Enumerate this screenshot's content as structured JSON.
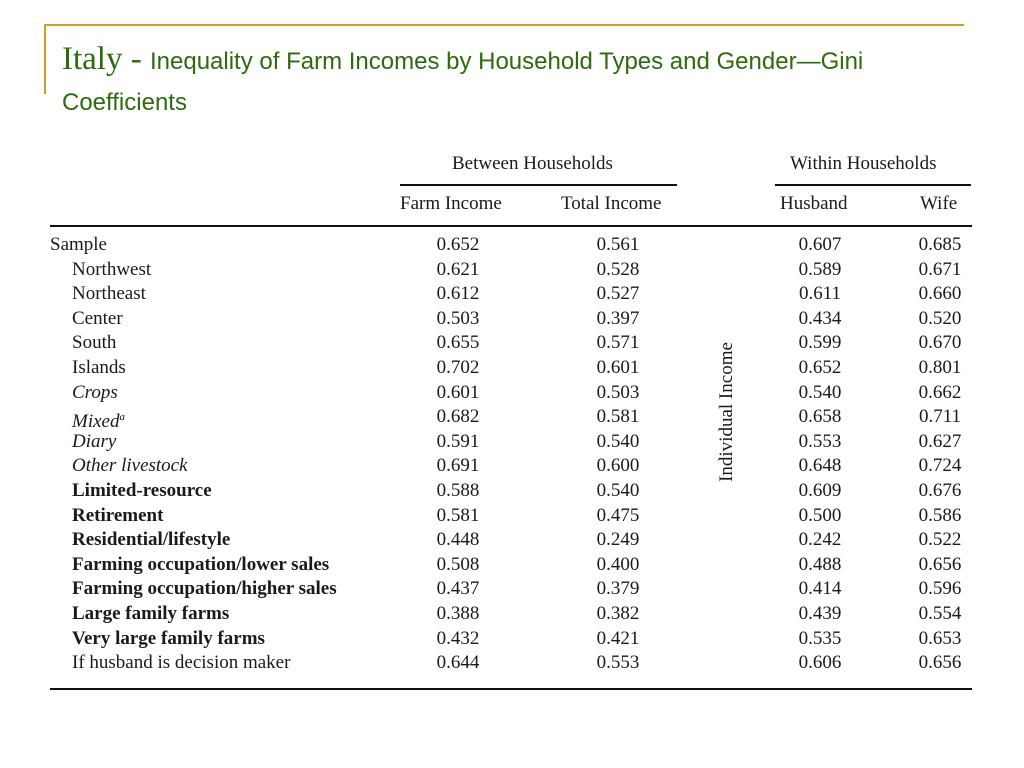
{
  "title": {
    "country": "Italy",
    "separator": " - ",
    "text": "Inequality of Farm Incomes by Household Types and Gender—Gini Coefficients"
  },
  "table": {
    "group_headers": {
      "between": "Between Households",
      "within": "Within Households"
    },
    "column_headers": [
      "Farm Income",
      "Total Income",
      "Husband",
      "Wife"
    ],
    "side_label": "Individual Income",
    "rows": [
      {
        "label": "Sample",
        "style": "normal",
        "indent": false,
        "values": [
          "0.652",
          "0.561",
          "0.607",
          "0.685"
        ]
      },
      {
        "label": "Northwest",
        "style": "normal",
        "indent": true,
        "values": [
          "0.621",
          "0.528",
          "0.589",
          "0.671"
        ]
      },
      {
        "label": "Northeast",
        "style": "normal",
        "indent": true,
        "values": [
          "0.612",
          "0.527",
          "0.611",
          "0.660"
        ]
      },
      {
        "label": "Center",
        "style": "normal",
        "indent": true,
        "values": [
          "0.503",
          "0.397",
          "0.434",
          "0.520"
        ]
      },
      {
        "label": "South",
        "style": "normal",
        "indent": true,
        "values": [
          "0.655",
          "0.571",
          "0.599",
          "0.670"
        ]
      },
      {
        "label": "Islands",
        "style": "normal",
        "indent": true,
        "values": [
          "0.702",
          "0.601",
          "0.652",
          "0.801"
        ]
      },
      {
        "label": "Crops",
        "style": "italic",
        "indent": true,
        "values": [
          "0.601",
          "0.503",
          "0.540",
          "0.662"
        ]
      },
      {
        "label": "Mixed",
        "sup": "a",
        "style": "italic",
        "indent": true,
        "values": [
          "0.682",
          "0.581",
          "0.658",
          "0.711"
        ]
      },
      {
        "label": "Diary",
        "style": "italic",
        "indent": true,
        "values": [
          "0.591",
          "0.540",
          "0.553",
          "0.627"
        ]
      },
      {
        "label": "Other livestock",
        "style": "italic",
        "indent": true,
        "values": [
          "0.691",
          "0.600",
          "0.648",
          "0.724"
        ]
      },
      {
        "label": "Limited-resource",
        "style": "bold",
        "indent": true,
        "values": [
          "0.588",
          "0.540",
          "0.609",
          "0.676"
        ]
      },
      {
        "label": "Retirement",
        "style": "bold",
        "indent": true,
        "values": [
          "0.581",
          "0.475",
          "0.500",
          "0.586"
        ]
      },
      {
        "label": "Residential/lifestyle",
        "style": "bold",
        "indent": true,
        "values": [
          "0.448",
          "0.249",
          "0.242",
          "0.522"
        ]
      },
      {
        "label": "Farming occupation/lower sales",
        "style": "bold",
        "indent": true,
        "values": [
          "0.508",
          "0.400",
          "0.488",
          "0.656"
        ]
      },
      {
        "label": "Farming occupation/higher sales",
        "style": "bold",
        "indent": true,
        "values": [
          "0.437",
          "0.379",
          "0.414",
          "0.596"
        ]
      },
      {
        "label": "Large family farms",
        "style": "bold",
        "indent": true,
        "values": [
          "0.388",
          "0.382",
          "0.439",
          "0.554"
        ]
      },
      {
        "label": "Very large family farms",
        "style": "bold",
        "indent": true,
        "values": [
          "0.432",
          "0.421",
          "0.535",
          "0.653"
        ]
      },
      {
        "label": "If husband is decision maker",
        "style": "normal",
        "indent": true,
        "values": [
          "0.644",
          "0.553",
          "0.606",
          "0.656"
        ]
      }
    ]
  },
  "colors": {
    "title": "#2e6b0d",
    "accent": "#c9a227",
    "text": "#1a1a1a"
  }
}
